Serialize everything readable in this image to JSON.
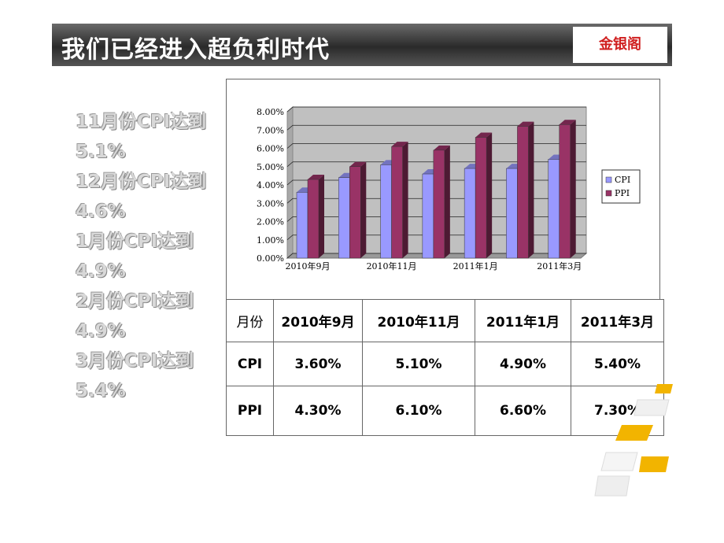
{
  "header": {
    "title": "我们已经进入超负利时代",
    "logo": "金银阁"
  },
  "notes": [
    "11月份CPI达到",
    "5.1%",
    "12月份CPI达到",
    "4.6%",
    "1月份CPI达到",
    "4.9%",
    "2月份CPI达到",
    "4.9%",
    "3月份CPI达到",
    "5.4%"
  ],
  "chart_data": {
    "type": "bar3d",
    "categories": [
      "2010年9月",
      null,
      "2010年11月",
      null,
      "2011年1月",
      null,
      "2011年3月"
    ],
    "series": [
      {
        "name": "CPI",
        "color": "#9999ff",
        "values": [
          3.6,
          4.4,
          5.1,
          4.6,
          4.9,
          4.9,
          5.4
        ]
      },
      {
        "name": "PPI",
        "color": "#993366",
        "values": [
          4.3,
          5.0,
          6.1,
          5.9,
          6.6,
          7.2,
          7.3
        ]
      }
    ],
    "ylim": [
      0,
      8
    ],
    "yticks": [
      {
        "value": 0,
        "label": "0.00%"
      },
      {
        "value": 1,
        "label": "1.00%"
      },
      {
        "value": 2,
        "label": "2.00%"
      },
      {
        "value": 3,
        "label": "3.00%"
      },
      {
        "value": 4,
        "label": "4.00%"
      },
      {
        "value": 5,
        "label": "5.00%"
      },
      {
        "value": 6,
        "label": "6.00%"
      },
      {
        "value": 7,
        "label": "7.00%"
      },
      {
        "value": 8,
        "label": "8.00%"
      }
    ],
    "grid": true,
    "legend": "right"
  },
  "table": {
    "header": [
      "月份",
      "2010年9月",
      "2010年11月",
      "2011年1月",
      "2011年3月"
    ],
    "rows": [
      [
        "CPI",
        "3.60%",
        "5.10%",
        "4.90%",
        "5.40%"
      ],
      [
        "PPI",
        "4.30%",
        "6.10%",
        "6.60%",
        "7.30%"
      ]
    ]
  }
}
